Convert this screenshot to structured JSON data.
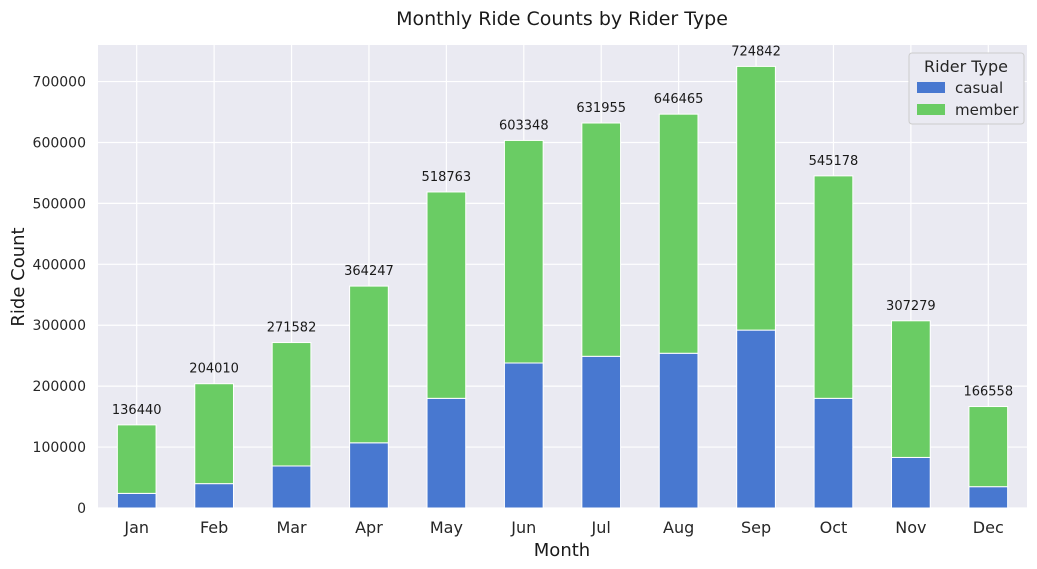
{
  "chart_data": {
    "type": "bar",
    "stacked": true,
    "title": "Monthly Ride Counts by Rider Type",
    "xlabel": "Month",
    "ylabel": "Ride Count",
    "categories": [
      "Jan",
      "Feb",
      "Mar",
      "Apr",
      "May",
      "Jun",
      "Jul",
      "Aug",
      "Sep",
      "Oct",
      "Nov",
      "Dec"
    ],
    "series": [
      {
        "name": "casual",
        "color": "#4878d0",
        "values": [
          24000,
          40000,
          69000,
          107000,
          180000,
          238000,
          249000,
          254000,
          292000,
          180000,
          83000,
          35000
        ]
      },
      {
        "name": "member",
        "color": "#6acc64",
        "values": [
          112440,
          164010,
          202582,
          257247,
          338763,
          365348,
          382955,
          392465,
          432842,
          365178,
          224279,
          131558
        ]
      }
    ],
    "totals": [
      "136440",
      "204010",
      "271582",
      "364247",
      "518763",
      "603348",
      "631955",
      "646465",
      "724842",
      "545178",
      "307279",
      "166558"
    ],
    "ylim": [
      0,
      760000
    ],
    "yticks": [
      "0",
      "100000",
      "200000",
      "300000",
      "400000",
      "500000",
      "600000",
      "700000"
    ],
    "grid": true,
    "legend": {
      "title": "Rider Type",
      "position": "top-right"
    },
    "background": "#eaeaf2",
    "grid_color": "#ffffff"
  }
}
